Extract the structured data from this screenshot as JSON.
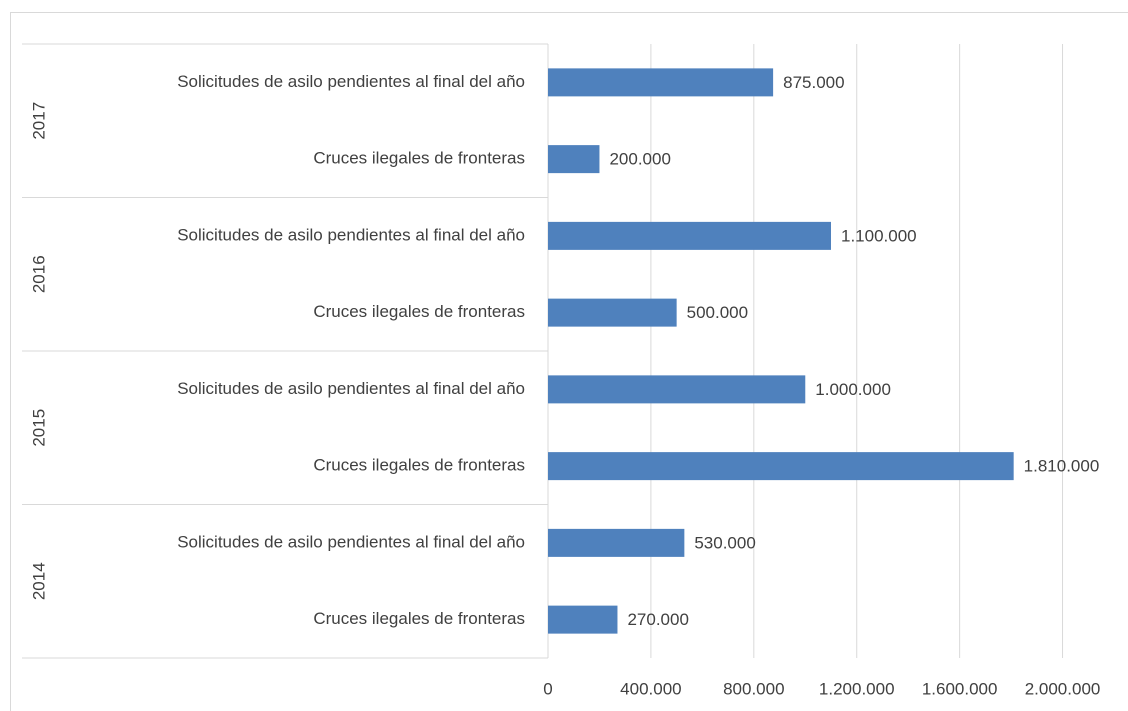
{
  "chart_data": {
    "type": "bar",
    "orientation": "horizontal",
    "groups": [
      "2017",
      "2016",
      "2015",
      "2014"
    ],
    "categories": [
      "Solicitudes de asilo pendientes al final del año",
      "Cruces ilegales de fronteras",
      "Solicitudes de asilo pendientes al final del año",
      "Cruces ilegales de fronteras",
      "Solicitudes de asilo pendientes al final del año",
      "Cruces ilegales de fronteras",
      "Solicitudes de asilo pendientes al final del año",
      "Cruces ilegales de fronteras"
    ],
    "values": [
      875000,
      200000,
      1100000,
      500000,
      1000000,
      1810000,
      530000,
      270000
    ],
    "value_labels": [
      "875.000",
      "200.000",
      "1.100.000",
      "500.000",
      "1.000.000",
      "1.810.000",
      "530.000",
      "270.000"
    ],
    "color": "#4f81bd",
    "xlim": [
      0,
      2200000
    ],
    "xticks": [
      0,
      {
        "value": 400000,
        "label": "400.000"
      },
      {
        "value": 800000,
        "label": "800.000"
      },
      {
        "value": 1200000,
        "label": "1.200.000"
      },
      {
        "value": 1600000,
        "label": "1.600.000"
      },
      {
        "value": 2000000,
        "label": "2.000.000"
      }
    ],
    "grid": true
  }
}
